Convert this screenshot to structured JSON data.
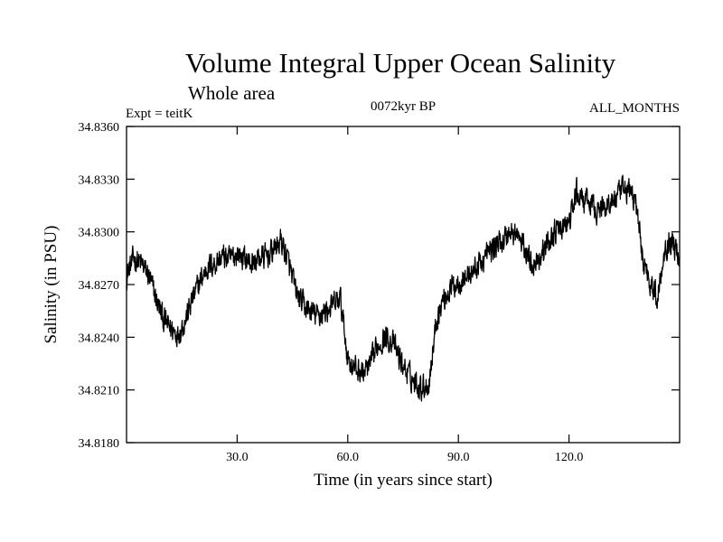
{
  "chart_data": {
    "type": "line",
    "title": "Volume Integral Upper Ocean Salinity",
    "subtitle": "Whole area",
    "experiment_label": "Expt = teitK",
    "period_label": "0072kyr BP",
    "months_label": "ALL_MONTHS",
    "xlabel": "Time (in years since start)",
    "ylabel": "Salinity (in PSU)",
    "xlim": [
      0,
      150
    ],
    "ylim": [
      34.818,
      34.836
    ],
    "x_ticks": [
      30,
      60,
      90,
      120
    ],
    "x_tick_labels": [
      "30.0",
      "60.0",
      "90.0",
      "120.0"
    ],
    "y_ticks": [
      34.818,
      34.821,
      34.824,
      34.827,
      34.83,
      34.833,
      34.836
    ],
    "y_tick_labels": [
      "34.8180",
      "34.8210",
      "34.8240",
      "34.8270",
      "34.8300",
      "34.8330",
      "34.8360"
    ],
    "series": [
      {
        "name": "Salinity",
        "color": "#000000",
        "noise_amplitude": 0.0011,
        "x": [
          0,
          2,
          4,
          6,
          8,
          10,
          12,
          14,
          16,
          18,
          20,
          22,
          24,
          26,
          28,
          30,
          32,
          34,
          36,
          38,
          40,
          42,
          44,
          46,
          48,
          50,
          52,
          54,
          56,
          58,
          60,
          62,
          64,
          66,
          68,
          70,
          72,
          74,
          76,
          78,
          80,
          82,
          84,
          86,
          88,
          90,
          92,
          94,
          96,
          98,
          100,
          102,
          104,
          106,
          108,
          110,
          112,
          114,
          116,
          118,
          120,
          122,
          124,
          126,
          128,
          130,
          132,
          134,
          136,
          138,
          140,
          142,
          144,
          146,
          148,
          150
        ],
        "values": [
          34.8275,
          34.8285,
          34.8282,
          34.8275,
          34.8262,
          34.825,
          34.8245,
          34.8242,
          34.825,
          34.8262,
          34.8272,
          34.828,
          34.8282,
          34.8286,
          34.8284,
          34.8288,
          34.8285,
          34.8282,
          34.8285,
          34.8286,
          34.829,
          34.8295,
          34.8282,
          34.8265,
          34.8258,
          34.8254,
          34.8252,
          34.8255,
          34.8258,
          34.8262,
          34.8228,
          34.8222,
          34.822,
          34.8223,
          34.8235,
          34.824,
          34.8238,
          34.8228,
          34.822,
          34.8215,
          34.8212,
          34.8213,
          34.825,
          34.8262,
          34.8268,
          34.8272,
          34.8274,
          34.8278,
          34.8282,
          34.8288,
          34.8292,
          34.8295,
          34.83,
          34.8298,
          34.829,
          34.8282,
          34.8286,
          34.8292,
          34.83,
          34.8302,
          34.8305,
          34.8322,
          34.8318,
          34.8315,
          34.8312,
          34.8315,
          34.8318,
          34.8322,
          34.8325,
          34.8318,
          34.8285,
          34.8272,
          34.8262,
          34.8292,
          34.8295,
          34.8285
        ]
      }
    ]
  }
}
